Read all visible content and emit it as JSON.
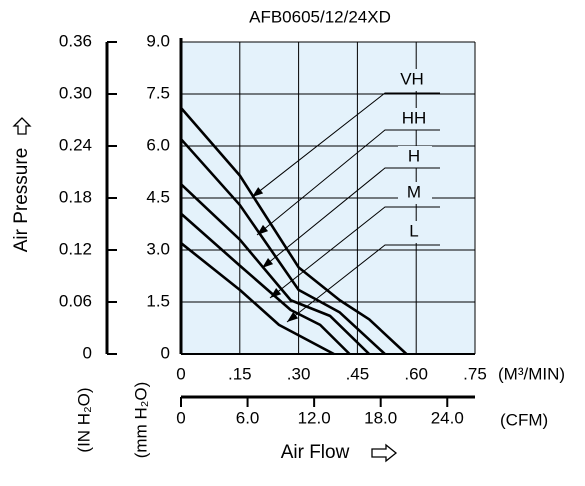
{
  "chart_data": {
    "type": "line",
    "title": "AFB0605/12/24XD",
    "y_label": "Air Pressure",
    "y_unit": "(mm H₂O)",
    "y2_unit": "(IN H₂O)",
    "x_label": "Air Flow",
    "x_unit": "(M³/MIN)",
    "x2_unit": "(CFM)",
    "xlim": [
      0,
      0.75
    ],
    "xticks": [
      0,
      {
        "value": 0.15,
        "label": ".15"
      },
      {
        "value": 0.3,
        "label": ".30"
      },
      {
        "value": 0.45,
        "label": ".45"
      },
      {
        "value": 0.6,
        "label": ".60"
      },
      {
        "value": 0.75,
        "label": ".75"
      }
    ],
    "x2lim": [
      0,
      26.5
    ],
    "x2ticks": [
      0,
      {
        "value": 6,
        "label": "6.0"
      },
      {
        "value": 12,
        "label": "12.0"
      },
      {
        "value": 18,
        "label": "18.0"
      },
      {
        "value": 24,
        "label": "24.0"
      }
    ],
    "ylim": [
      0,
      9
    ],
    "yticks": [
      0,
      1.5,
      {
        "value": 3,
        "label": "3.0"
      },
      4.5,
      {
        "value": 6,
        "label": "6.0"
      },
      7.5,
      {
        "value": 9,
        "label": "9.0"
      }
    ],
    "y2lim": [
      0,
      0.36
    ],
    "y2ticks": [
      0,
      0.06,
      0.12,
      0.18,
      0.24,
      {
        "value": 0.3,
        "label": "0.30"
      },
      0.36
    ],
    "grid": true,
    "background": "#e4f2fb",
    "series": [
      {
        "name": "VH",
        "color": "#000000",
        "x": [
          0,
          0.15,
          0.3,
          0.405,
          0.48,
          0.575
        ],
        "values": [
          7.1,
          5.15,
          2.5,
          1.55,
          1.0,
          0
        ]
      },
      {
        "name": "HH",
        "color": "#000000",
        "x": [
          0,
          0.15,
          0.3,
          0.405,
          0.52
        ],
        "values": [
          6.2,
          4.3,
          1.85,
          1.2,
          0
        ]
      },
      {
        "name": "H",
        "color": "#000000",
        "x": [
          0,
          0.15,
          0.28,
          0.38,
          0.48
        ],
        "values": [
          4.9,
          3.3,
          1.55,
          1.1,
          0
        ]
      },
      {
        "name": "M",
        "color": "#000000",
        "x": [
          0,
          0.15,
          0.28,
          0.355,
          0.43
        ],
        "values": [
          4.05,
          2.55,
          1.27,
          0.84,
          0
        ]
      },
      {
        "name": "L",
        "color": "#000000",
        "x": [
          0,
          0.15,
          0.25,
          0.39
        ],
        "values": [
          3.2,
          1.85,
          0.84,
          0
        ]
      }
    ]
  }
}
